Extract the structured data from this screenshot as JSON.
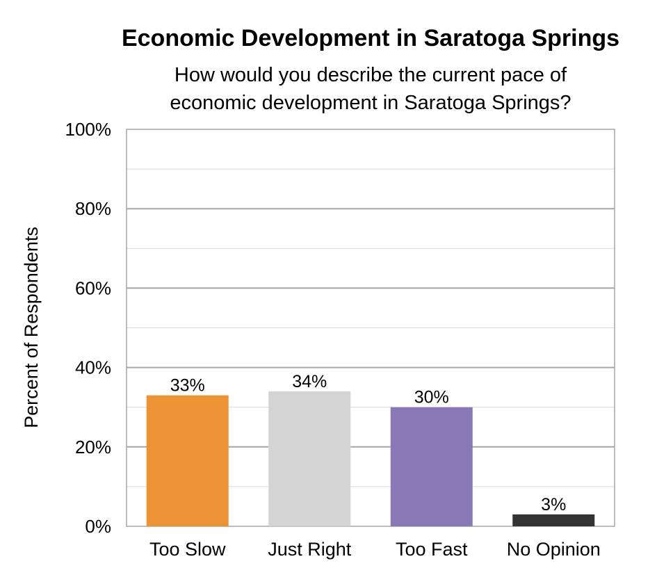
{
  "chart_data": {
    "type": "bar",
    "title": "Economic Development in Saratoga Springs",
    "subtitle_lines": [
      "How would you describe the current pace of",
      "economic development in Saratoga Springs?"
    ],
    "ylabel": "Percent of Respondents",
    "xlabel": "",
    "ylim": [
      0,
      100
    ],
    "yticks": [
      0,
      20,
      40,
      60,
      80,
      100
    ],
    "ytick_labels": [
      "0%",
      "20%",
      "40%",
      "60%",
      "80%",
      "100%"
    ],
    "minor_grid": [
      10,
      30,
      50,
      70,
      90
    ],
    "categories": [
      "Too Slow",
      "Just Right",
      "Too Fast",
      "No Opinion"
    ],
    "values": [
      33,
      34,
      30,
      3
    ],
    "data_labels": [
      "33%",
      "34%",
      "30%",
      "3%"
    ],
    "colors": [
      "#EC9336",
      "#D4D4D4",
      "#8878B5",
      "#333333"
    ],
    "grid": true,
    "legend": "none"
  }
}
